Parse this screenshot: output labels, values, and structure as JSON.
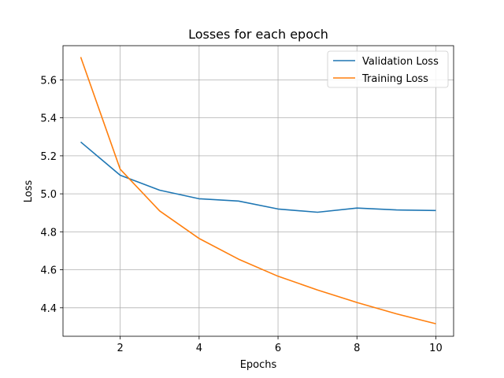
{
  "chart_data": {
    "type": "line",
    "title": "Losses for each epoch",
    "xlabel": "Epochs",
    "ylabel": "Loss",
    "x": [
      1,
      2,
      3,
      4,
      5,
      6,
      7,
      8,
      9,
      10
    ],
    "series": [
      {
        "name": "Validation Loss",
        "color": "#1f77b4",
        "values": [
          5.273,
          5.098,
          5.019,
          4.974,
          4.962,
          4.92,
          4.903,
          4.925,
          4.915,
          4.912
        ]
      },
      {
        "name": "Training Loss",
        "color": "#ff7f0e",
        "values": [
          5.72,
          5.13,
          4.91,
          4.765,
          4.656,
          4.566,
          4.494,
          4.428,
          4.368,
          4.316
        ]
      }
    ],
    "xlim": [
      0.55,
      10.45
    ],
    "ylim": [
      4.25,
      5.78
    ],
    "xticks": [
      2,
      4,
      6,
      8,
      10
    ],
    "yticks": [
      4.4,
      4.6,
      4.8,
      5.0,
      5.2,
      5.4,
      5.6
    ],
    "xtick_labels": [
      "2",
      "4",
      "6",
      "8",
      "10"
    ],
    "ytick_labels": [
      "4.4",
      "4.6",
      "4.8",
      "5.0",
      "5.2",
      "5.4",
      "5.6"
    ],
    "grid": true,
    "legend_position": "top-right"
  }
}
